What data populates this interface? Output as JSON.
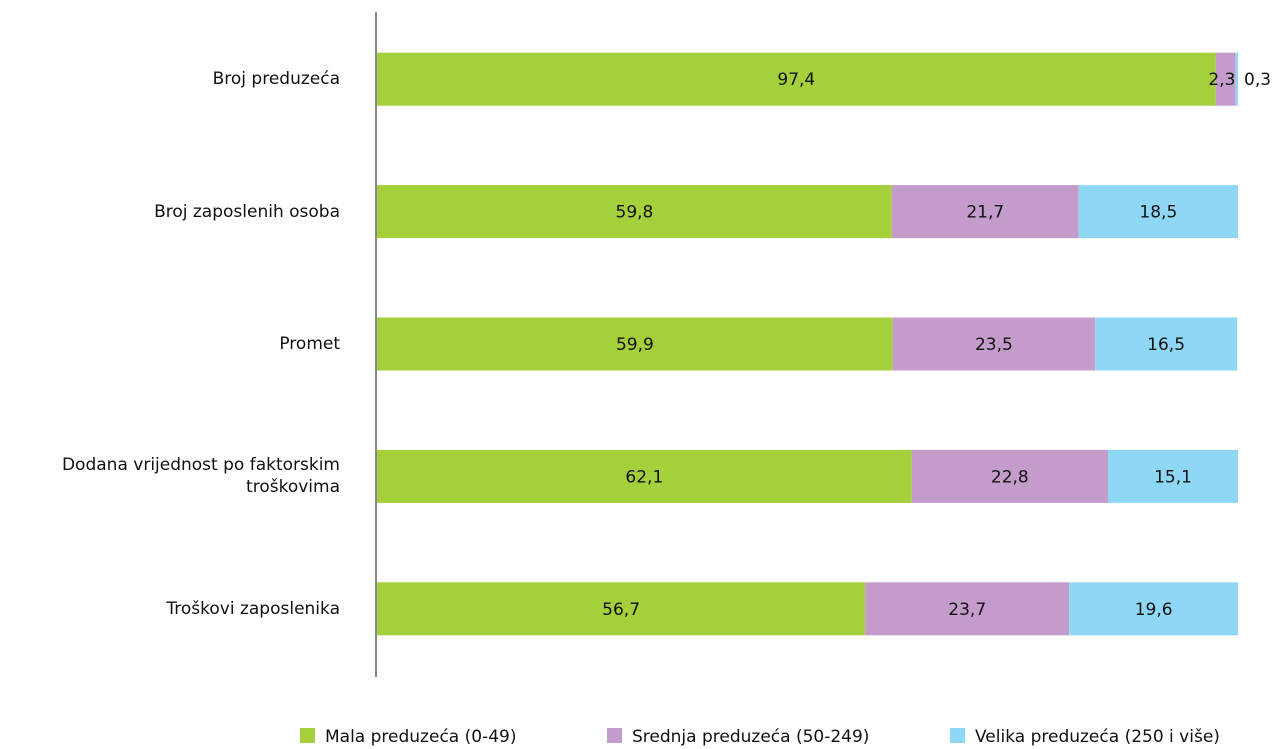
{
  "chart_data": {
    "type": "stacked_barh",
    "categories": [
      "Broj preduzeća",
      "Broj zaposlenih osoba",
      "Promet",
      "Dodana vrijednost po faktorskim troškovima",
      "Troškovi zaposlenika"
    ],
    "series": [
      {
        "name": "Mala preduzeća (0-49)",
        "color": "#a5cf3b",
        "values": [
          97.4,
          59.8,
          59.9,
          62.1,
          56.7
        ],
        "value_labels": [
          "97,4",
          "59,8",
          "59,9",
          "62,1",
          "56,7"
        ]
      },
      {
        "name": "Srednja preduzeća (50-249)",
        "color": "#c49ccb",
        "values": [
          2.3,
          21.7,
          23.5,
          22.8,
          23.7
        ],
        "value_labels": [
          "2,3",
          "21,7",
          "23,5",
          "22,8",
          "23,7"
        ]
      },
      {
        "name": "Velika preduzeća (250 i više)",
        "color": "#8ed8f5",
        "values": [
          0.3,
          18.5,
          16.5,
          15.1,
          19.6
        ],
        "value_labels": [
          "0,3",
          "18,5",
          "16,5",
          "15,1",
          "19,6"
        ]
      }
    ],
    "xlim": [
      0,
      100
    ]
  }
}
